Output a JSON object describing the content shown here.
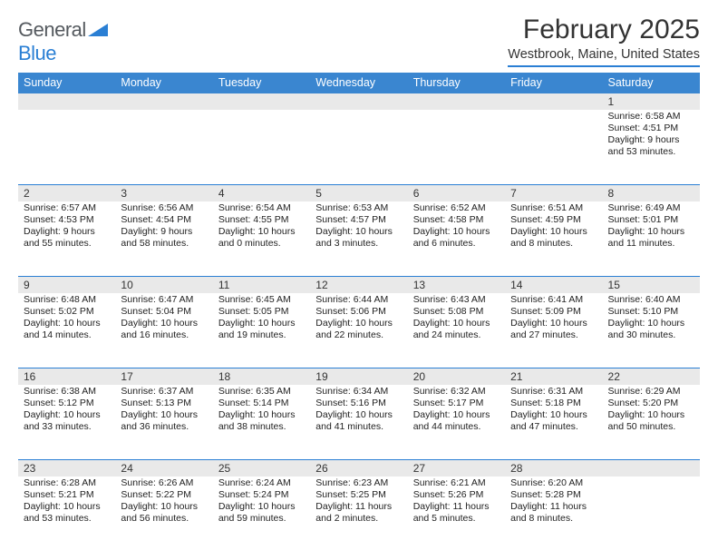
{
  "logo": {
    "text1": "General",
    "text2": "Blue"
  },
  "title": "February 2025",
  "location": "Westbrook, Maine, United States",
  "colors": {
    "header_bg": "#3a86d0",
    "accent": "#2a7fd4",
    "daynum_bg": "#e9e9e9",
    "text": "#222222",
    "logo_gray": "#555a5f"
  },
  "dayHeaders": [
    "Sunday",
    "Monday",
    "Tuesday",
    "Wednesday",
    "Thursday",
    "Friday",
    "Saturday"
  ],
  "weeks": [
    [
      {
        "n": "",
        "sr": "",
        "ss": "",
        "dl": ""
      },
      {
        "n": "",
        "sr": "",
        "ss": "",
        "dl": ""
      },
      {
        "n": "",
        "sr": "",
        "ss": "",
        "dl": ""
      },
      {
        "n": "",
        "sr": "",
        "ss": "",
        "dl": ""
      },
      {
        "n": "",
        "sr": "",
        "ss": "",
        "dl": ""
      },
      {
        "n": "",
        "sr": "",
        "ss": "",
        "dl": ""
      },
      {
        "n": "1",
        "sr": "Sunrise: 6:58 AM",
        "ss": "Sunset: 4:51 PM",
        "dl": "Daylight: 9 hours and 53 minutes."
      }
    ],
    [
      {
        "n": "2",
        "sr": "Sunrise: 6:57 AM",
        "ss": "Sunset: 4:53 PM",
        "dl": "Daylight: 9 hours and 55 minutes."
      },
      {
        "n": "3",
        "sr": "Sunrise: 6:56 AM",
        "ss": "Sunset: 4:54 PM",
        "dl": "Daylight: 9 hours and 58 minutes."
      },
      {
        "n": "4",
        "sr": "Sunrise: 6:54 AM",
        "ss": "Sunset: 4:55 PM",
        "dl": "Daylight: 10 hours and 0 minutes."
      },
      {
        "n": "5",
        "sr": "Sunrise: 6:53 AM",
        "ss": "Sunset: 4:57 PM",
        "dl": "Daylight: 10 hours and 3 minutes."
      },
      {
        "n": "6",
        "sr": "Sunrise: 6:52 AM",
        "ss": "Sunset: 4:58 PM",
        "dl": "Daylight: 10 hours and 6 minutes."
      },
      {
        "n": "7",
        "sr": "Sunrise: 6:51 AM",
        "ss": "Sunset: 4:59 PM",
        "dl": "Daylight: 10 hours and 8 minutes."
      },
      {
        "n": "8",
        "sr": "Sunrise: 6:49 AM",
        "ss": "Sunset: 5:01 PM",
        "dl": "Daylight: 10 hours and 11 minutes."
      }
    ],
    [
      {
        "n": "9",
        "sr": "Sunrise: 6:48 AM",
        "ss": "Sunset: 5:02 PM",
        "dl": "Daylight: 10 hours and 14 minutes."
      },
      {
        "n": "10",
        "sr": "Sunrise: 6:47 AM",
        "ss": "Sunset: 5:04 PM",
        "dl": "Daylight: 10 hours and 16 minutes."
      },
      {
        "n": "11",
        "sr": "Sunrise: 6:45 AM",
        "ss": "Sunset: 5:05 PM",
        "dl": "Daylight: 10 hours and 19 minutes."
      },
      {
        "n": "12",
        "sr": "Sunrise: 6:44 AM",
        "ss": "Sunset: 5:06 PM",
        "dl": "Daylight: 10 hours and 22 minutes."
      },
      {
        "n": "13",
        "sr": "Sunrise: 6:43 AM",
        "ss": "Sunset: 5:08 PM",
        "dl": "Daylight: 10 hours and 24 minutes."
      },
      {
        "n": "14",
        "sr": "Sunrise: 6:41 AM",
        "ss": "Sunset: 5:09 PM",
        "dl": "Daylight: 10 hours and 27 minutes."
      },
      {
        "n": "15",
        "sr": "Sunrise: 6:40 AM",
        "ss": "Sunset: 5:10 PM",
        "dl": "Daylight: 10 hours and 30 minutes."
      }
    ],
    [
      {
        "n": "16",
        "sr": "Sunrise: 6:38 AM",
        "ss": "Sunset: 5:12 PM",
        "dl": "Daylight: 10 hours and 33 minutes."
      },
      {
        "n": "17",
        "sr": "Sunrise: 6:37 AM",
        "ss": "Sunset: 5:13 PM",
        "dl": "Daylight: 10 hours and 36 minutes."
      },
      {
        "n": "18",
        "sr": "Sunrise: 6:35 AM",
        "ss": "Sunset: 5:14 PM",
        "dl": "Daylight: 10 hours and 38 minutes."
      },
      {
        "n": "19",
        "sr": "Sunrise: 6:34 AM",
        "ss": "Sunset: 5:16 PM",
        "dl": "Daylight: 10 hours and 41 minutes."
      },
      {
        "n": "20",
        "sr": "Sunrise: 6:32 AM",
        "ss": "Sunset: 5:17 PM",
        "dl": "Daylight: 10 hours and 44 minutes."
      },
      {
        "n": "21",
        "sr": "Sunrise: 6:31 AM",
        "ss": "Sunset: 5:18 PM",
        "dl": "Daylight: 10 hours and 47 minutes."
      },
      {
        "n": "22",
        "sr": "Sunrise: 6:29 AM",
        "ss": "Sunset: 5:20 PM",
        "dl": "Daylight: 10 hours and 50 minutes."
      }
    ],
    [
      {
        "n": "23",
        "sr": "Sunrise: 6:28 AM",
        "ss": "Sunset: 5:21 PM",
        "dl": "Daylight: 10 hours and 53 minutes."
      },
      {
        "n": "24",
        "sr": "Sunrise: 6:26 AM",
        "ss": "Sunset: 5:22 PM",
        "dl": "Daylight: 10 hours and 56 minutes."
      },
      {
        "n": "25",
        "sr": "Sunrise: 6:24 AM",
        "ss": "Sunset: 5:24 PM",
        "dl": "Daylight: 10 hours and 59 minutes."
      },
      {
        "n": "26",
        "sr": "Sunrise: 6:23 AM",
        "ss": "Sunset: 5:25 PM",
        "dl": "Daylight: 11 hours and 2 minutes."
      },
      {
        "n": "27",
        "sr": "Sunrise: 6:21 AM",
        "ss": "Sunset: 5:26 PM",
        "dl": "Daylight: 11 hours and 5 minutes."
      },
      {
        "n": "28",
        "sr": "Sunrise: 6:20 AM",
        "ss": "Sunset: 5:28 PM",
        "dl": "Daylight: 11 hours and 8 minutes."
      },
      {
        "n": "",
        "sr": "",
        "ss": "",
        "dl": ""
      }
    ]
  ]
}
